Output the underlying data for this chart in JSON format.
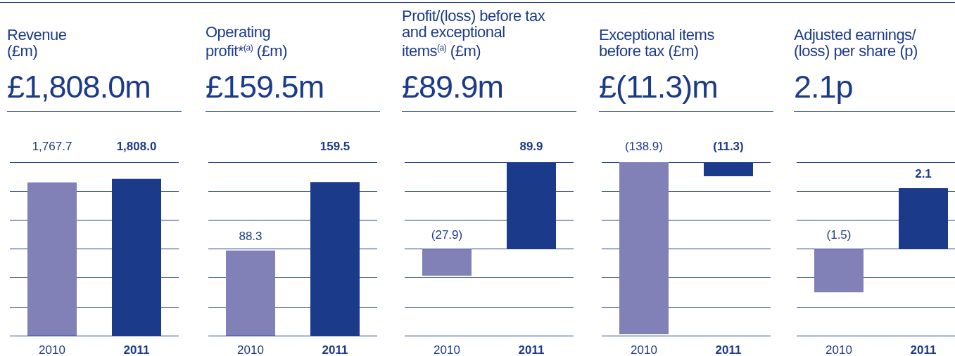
{
  "chart_data": [
    {
      "type": "bar",
      "title": "Revenue\n(£m)",
      "subtitle": "£1,808.0m",
      "categories": [
        "2010",
        "2011"
      ],
      "values": [
        1767.7,
        1808.0
      ],
      "colors": [
        "#8181b7",
        "#1b3a8a"
      ],
      "value_labels": [
        "1,767.7",
        "1,808.0"
      ],
      "ylim": [
        0,
        2000
      ],
      "yticks": [
        {
          "value": 0,
          "label": null
        },
        {
          "value": 333.3,
          "label": null
        },
        {
          "value": 666.7,
          "label": null
        },
        {
          "value": 1000,
          "label": null
        },
        {
          "value": 1333.3,
          "label": null
        },
        {
          "value": 1666.7,
          "label": null
        },
        {
          "value": 2000,
          "label": null
        }
      ],
      "grid": "y",
      "tick_labels": "x"
    },
    {
      "type": "bar",
      "title": "Operating\nprofit*$^{(a)}$ (£m)",
      "subtitle": "£159.5m",
      "categories": [
        "2010",
        "2011"
      ],
      "values": [
        88.3,
        159.5
      ],
      "colors": [
        "#8181b7",
        "#1b3a8a"
      ],
      "value_labels": [
        "88.3",
        "159.5"
      ],
      "ylim": [
        0,
        180
      ],
      "yticks": [
        {
          "value": 0,
          "label": null
        },
        {
          "value": 30,
          "label": null
        },
        {
          "value": 60,
          "label": null
        },
        {
          "value": 90,
          "label": null
        },
        {
          "value": 120,
          "label": null
        },
        {
          "value": 150,
          "label": null
        },
        {
          "value": 180,
          "label": null
        }
      ],
      "grid": "y",
      "tick_labels": "x"
    },
    {
      "type": "bar",
      "title": "Profit/(loss) before tax\nand exceptional\nitems$^{(a)}$ (£m)",
      "subtitle": "£89.9m",
      "categories": [
        "2010",
        "2011"
      ],
      "values": [
        -27.9,
        89.9
      ],
      "colors": [
        "#8181b7",
        "#1b3a8a"
      ],
      "value_labels": [
        "(27.9)",
        "89.9"
      ],
      "ylim": [
        -90,
        90
      ],
      "yticks": [
        {
          "value": -90,
          "label": null
        },
        {
          "value": -60,
          "label": null
        },
        {
          "value": -30,
          "label": null
        },
        {
          "value": 0,
          "label": null
        },
        {
          "value": 30,
          "label": null
        },
        {
          "value": 60,
          "label": null
        },
        {
          "value": 90,
          "label": null
        }
      ],
      "grid": "y",
      "tick_labels": "x"
    },
    {
      "type": "bar",
      "title": "Exceptional items\nbefore tax (£m)",
      "subtitle": "£(11.3)m",
      "categories": [
        "2010",
        "2011"
      ],
      "values": [
        -138.9,
        -11.3
      ],
      "colors": [
        "#8181b7",
        "#1b3a8a"
      ],
      "value_labels": [
        "(138.9)",
        "(11.3)"
      ],
      "ylim": [
        -140,
        0
      ],
      "yticks": [
        {
          "value": -140,
          "label": null
        },
        {
          "value": -116.7,
          "label": null
        },
        {
          "value": -93.3,
          "label": null
        },
        {
          "value": -70,
          "label": null
        },
        {
          "value": -46.7,
          "label": null
        },
        {
          "value": -23.3,
          "label": null
        },
        {
          "value": 0,
          "label": null
        }
      ],
      "grid": "y",
      "tick_labels": "x"
    },
    {
      "type": "bar",
      "title": "Adjusted earnings/\n(loss) per share (p)",
      "subtitle": "2.1p",
      "categories": [
        "2010",
        "2011"
      ],
      "values": [
        -1.5,
        2.1
      ],
      "colors": [
        "#8181b7",
        "#1b3a8a"
      ],
      "value_labels": [
        "(1.5)",
        "2.1"
      ],
      "ylim": [
        -3,
        3
      ],
      "yticks": [
        {
          "value": -3,
          "label": null
        },
        {
          "value": -2,
          "label": null
        },
        {
          "value": -1,
          "label": null
        },
        {
          "value": 0,
          "label": null
        },
        {
          "value": 1,
          "label": null
        },
        {
          "value": 2,
          "label": null
        },
        {
          "value": 3,
          "label": null
        }
      ],
      "grid": "y",
      "tick_labels": "x"
    }
  ]
}
